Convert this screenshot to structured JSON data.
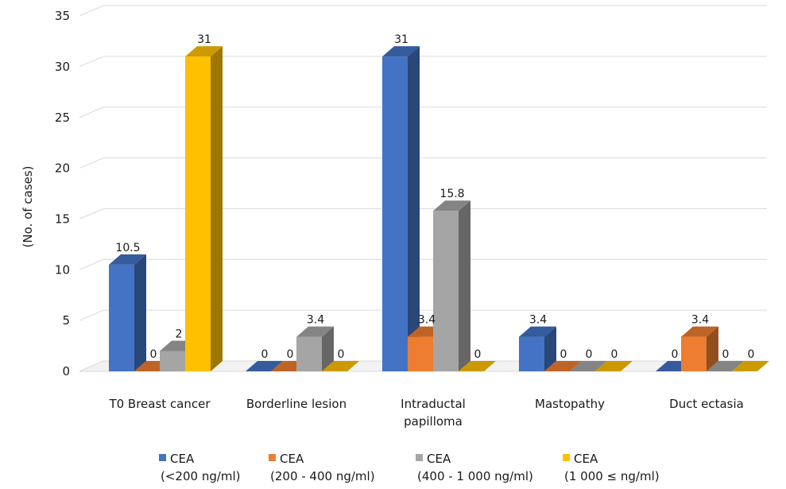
{
  "chart_data": {
    "type": "bar",
    "title": "",
    "xlabel": "",
    "ylabel": "(No. of cases)",
    "ylim": [
      0,
      35
    ],
    "yticks": [
      0,
      5,
      10,
      15,
      20,
      25,
      30,
      35
    ],
    "grid": true,
    "legend_position": "bottom",
    "categories": [
      [
        "T0 Breast cancer"
      ],
      [
        "Borderline lesion"
      ],
      [
        "Intraductal",
        "papilloma"
      ],
      [
        "Mastopathy"
      ],
      [
        "Duct ectasia"
      ]
    ],
    "series": [
      {
        "name": [
          "CEA",
          "(<200 ng/ml)"
        ],
        "color": "#4472C4",
        "values": [
          10.5,
          0,
          31,
          3.4,
          0
        ]
      },
      {
        "name": [
          "CEA",
          "(200 - 400 ng/ml)"
        ],
        "color": "#ED7D31",
        "values": [
          0,
          0,
          3.4,
          0,
          3.4
        ]
      },
      {
        "name": [
          "CEA",
          "(400 - 1 000 ng/ml)"
        ],
        "color": "#A5A5A5",
        "values": [
          2,
          3.4,
          15.8,
          0,
          0
        ]
      },
      {
        "name": [
          "CEA",
          "(1 000 ≤ ng/ml)"
        ],
        "color": "#FFC000",
        "values": [
          31,
          0,
          0,
          0,
          0
        ]
      }
    ]
  }
}
